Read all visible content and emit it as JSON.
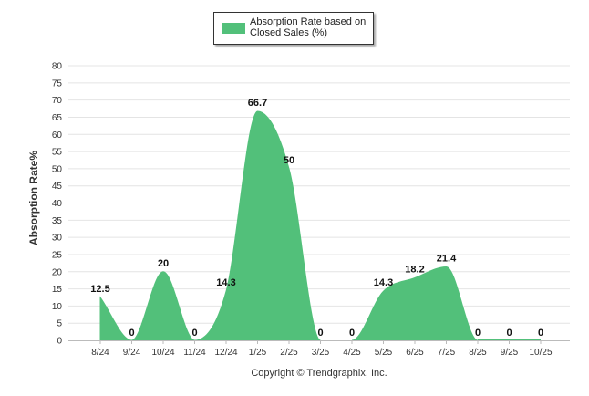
{
  "legend": {
    "label": "Absorption Rate based on Closed Sales (%)"
  },
  "copyright": "Copyright © Trendgraphix, Inc.",
  "colors": {
    "fill": "#52c07a",
    "grid": "#e4e4e4",
    "axis": "#bbbbbb",
    "text": "#333333"
  },
  "chart_data": {
    "type": "area",
    "title": "",
    "xlabel": "",
    "ylabel": "Absorption Rate%",
    "ylim": [
      0,
      80
    ],
    "yticks": [
      0,
      5,
      10,
      15,
      20,
      25,
      30,
      35,
      40,
      45,
      50,
      55,
      60,
      65,
      70,
      75,
      80
    ],
    "grid": true,
    "legend_position": "top-center",
    "categories": [
      "8/24",
      "9/24",
      "10/24",
      "11/24",
      "12/24",
      "1/25",
      "2/25",
      "3/25",
      "4/25",
      "5/25",
      "6/25",
      "7/25",
      "8/25",
      "9/25",
      "10/25"
    ],
    "series": [
      {
        "name": "Absorption Rate based on Closed Sales (%)",
        "values": [
          12.5,
          0,
          20,
          0,
          14.3,
          66.7,
          50,
          0,
          0,
          14.3,
          18.2,
          21.4,
          0,
          0,
          0
        ],
        "data_labels": [
          "12.5",
          "0",
          "20",
          "0",
          "14.3",
          "66.7",
          "50",
          "0",
          "0",
          "14.3",
          "18.2",
          "21.4",
          "0",
          "0",
          "0"
        ]
      }
    ]
  }
}
